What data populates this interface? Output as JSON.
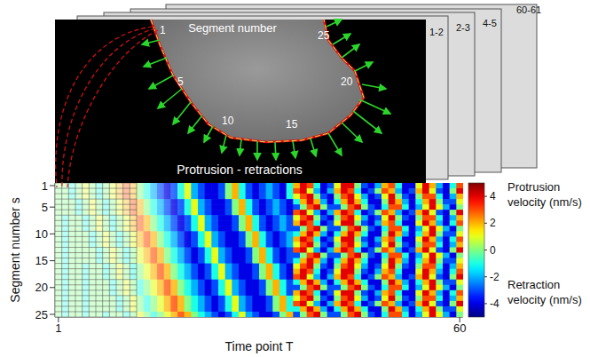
{
  "diagram": {
    "frame_labels": [
      "1-2",
      "2-3",
      "4-5",
      "60-61"
    ],
    "segment_title": "Segment number",
    "segment_labels": [
      "1",
      "5",
      "10",
      "15",
      "20",
      "25"
    ],
    "caption": "Protrusion - retractions"
  },
  "chart_data": {
    "type": "heatmap",
    "xlabel": "Time point T",
    "ylabel": "Segment number s",
    "xlim": [
      0.5,
      60.5
    ],
    "xticks": [
      1,
      60
    ],
    "ylim": [
      0.5,
      25.5
    ],
    "yticks": [
      1,
      5,
      10,
      15,
      20,
      25
    ],
    "colorbar": {
      "range": [
        -5,
        5
      ],
      "ticks": [
        -4,
        -2,
        0,
        2,
        4
      ],
      "top_label": "Protrusion velocity (nm/s)",
      "bottom_label": "Retraction velocity (nm/s)"
    },
    "cells": [
      [
        0,
        0,
        -1,
        0,
        1,
        0,
        -1,
        0,
        1,
        2,
        3,
        2,
        0,
        -1,
        -2,
        -3,
        -4,
        -3,
        -1,
        1,
        -2,
        -3,
        -4,
        -4,
        -3,
        0,
        2,
        -1,
        -3,
        -4,
        -3,
        -2,
        -3,
        -4,
        -1,
        2,
        4,
        3,
        -1,
        -4,
        -3,
        1,
        4,
        4,
        0,
        -3,
        -4,
        -2,
        2,
        3,
        -1,
        -4,
        -4,
        1,
        4,
        2,
        -2,
        -4,
        -1,
        3
      ],
      [
        0,
        0,
        -1,
        0,
        1,
        0,
        -1,
        0,
        1,
        2,
        3,
        2,
        0,
        -1,
        -2,
        -3,
        -4,
        -3,
        -1,
        1,
        -2,
        -3,
        -4,
        -4,
        -3,
        0,
        2,
        -1,
        -3,
        -4,
        -3,
        -2,
        -3,
        -4,
        -1,
        3,
        4,
        1,
        -2,
        -4,
        -2,
        2,
        4,
        3,
        -1,
        -4,
        -3,
        0,
        3,
        2,
        -2,
        -4,
        -3,
        2,
        4,
        1,
        -3,
        -4,
        0,
        4
      ],
      [
        0,
        0,
        -1,
        0,
        1,
        0,
        -1,
        0,
        1,
        2,
        3,
        2,
        0,
        -1,
        -2,
        -3,
        -4,
        -3,
        -1,
        1,
        -2,
        -3,
        -4,
        -4,
        -3,
        0,
        2,
        -1,
        -3,
        -4,
        -3,
        -2,
        -3,
        -4,
        -1,
        1,
        3,
        4,
        0,
        -3,
        -4,
        0,
        3,
        4,
        1,
        -2,
        -4,
        -3,
        1,
        4,
        0,
        -3,
        -4,
        0,
        3,
        3,
        -1,
        -4,
        -2,
        2
      ],
      [
        0,
        0,
        0,
        -1,
        0,
        1,
        0,
        -1,
        0,
        1,
        2,
        3,
        2,
        0,
        -1,
        -2,
        -3,
        -4,
        -3,
        -1,
        1,
        -2,
        -3,
        -4,
        -4,
        -3,
        0,
        2,
        -1,
        -3,
        -4,
        -3,
        -2,
        -3,
        -4,
        -1,
        2,
        4,
        2,
        -2,
        -4,
        -1,
        2,
        4,
        2,
        -1,
        -4,
        -4,
        0,
        4,
        2,
        -2,
        -4,
        -1,
        2,
        4,
        0,
        -3,
        -3,
        1
      ],
      [
        0,
        0,
        0,
        -1,
        0,
        1,
        0,
        -1,
        0,
        1,
        2,
        3,
        2,
        0,
        -1,
        -2,
        -3,
        -4,
        -3,
        -1,
        1,
        -2,
        -3,
        -4,
        -4,
        -3,
        0,
        2,
        -1,
        -3,
        -4,
        -3,
        -2,
        -3,
        -4,
        -3,
        0,
        3,
        4,
        0,
        -3,
        -3,
        0,
        3,
        4,
        0,
        -3,
        -4,
        -1,
        3,
        3,
        -1,
        -4,
        -2,
        1,
        4,
        1,
        -2,
        -4,
        0
      ],
      [
        0,
        0,
        0,
        -1,
        0,
        1,
        0,
        -1,
        0,
        1,
        2,
        3,
        2,
        0,
        -1,
        -2,
        -3,
        -4,
        -3,
        -1,
        1,
        -2,
        -3,
        -4,
        -4,
        -3,
        0,
        2,
        -1,
        -3,
        -4,
        -3,
        -2,
        -3,
        -4,
        3,
        4,
        1,
        -2,
        -4,
        -2,
        2,
        4,
        3,
        -1,
        -4,
        -3,
        0,
        3,
        2,
        -2,
        -4,
        -3,
        2,
        4,
        1,
        -3,
        -4,
        0,
        4
      ],
      [
        0,
        -1,
        0,
        0,
        -1,
        0,
        1,
        0,
        -1,
        0,
        1,
        2,
        3,
        2,
        0,
        -1,
        -2,
        -3,
        -4,
        -3,
        -1,
        1,
        -2,
        -3,
        -4,
        -4,
        -3,
        0,
        2,
        -1,
        -3,
        -4,
        -3,
        -2,
        -3,
        1,
        3,
        4,
        0,
        -3,
        -4,
        0,
        3,
        4,
        1,
        -2,
        -4,
        -3,
        1,
        4,
        0,
        -3,
        -4,
        0,
        3,
        3,
        -1,
        -4,
        -2,
        2
      ],
      [
        0,
        -1,
        0,
        0,
        -1,
        0,
        1,
        0,
        -1,
        0,
        1,
        2,
        3,
        2,
        0,
        -1,
        -2,
        -3,
        -4,
        -3,
        -1,
        1,
        -2,
        -3,
        -4,
        -4,
        -3,
        0,
        2,
        -1,
        -3,
        -4,
        -3,
        -2,
        -3,
        2,
        4,
        3,
        -1,
        -4,
        -3,
        1,
        4,
        4,
        0,
        -3,
        -4,
        -2,
        2,
        3,
        -1,
        -4,
        -4,
        1,
        4,
        2,
        -2,
        -4,
        -1,
        3
      ],
      [
        0,
        -1,
        0,
        0,
        -1,
        0,
        1,
        0,
        -1,
        0,
        1,
        2,
        3,
        2,
        0,
        -1,
        -2,
        -3,
        -4,
        -3,
        -1,
        1,
        -2,
        -3,
        -4,
        -4,
        -3,
        0,
        2,
        -1,
        -3,
        -4,
        -3,
        -2,
        -3,
        -3,
        0,
        3,
        4,
        0,
        -3,
        -3,
        0,
        3,
        4,
        0,
        -3,
        -4,
        -1,
        3,
        3,
        -1,
        -4,
        -2,
        1,
        4,
        1,
        -2,
        -4,
        0
      ],
      [
        0,
        -1,
        0,
        0,
        0,
        -1,
        0,
        1,
        0,
        -1,
        0,
        1,
        2,
        3,
        2,
        0,
        -1,
        -2,
        -3,
        -4,
        -3,
        -1,
        1,
        -2,
        -3,
        -4,
        -4,
        -3,
        0,
        2,
        -1,
        -3,
        -4,
        -3,
        -2,
        -1,
        2,
        4,
        2,
        -2,
        -4,
        -1,
        2,
        4,
        2,
        -1,
        -4,
        -4,
        0,
        4,
        2,
        -2,
        -4,
        -1,
        2,
        4,
        0,
        -3,
        -3,
        1
      ],
      [
        0,
        -1,
        0,
        0,
        0,
        -1,
        0,
        1,
        0,
        -1,
        0,
        1,
        2,
        3,
        2,
        0,
        -1,
        -2,
        -3,
        -4,
        -3,
        -1,
        1,
        -2,
        -3,
        -4,
        -4,
        -3,
        0,
        2,
        -1,
        -3,
        -4,
        -3,
        -2,
        2,
        4,
        3,
        -1,
        -4,
        -3,
        1,
        4,
        4,
        0,
        -3,
        -4,
        -2,
        2,
        3,
        -1,
        -4,
        -4,
        1,
        4,
        2,
        -2,
        -4,
        -1,
        3
      ],
      [
        0,
        -1,
        0,
        0,
        0,
        -1,
        0,
        1,
        0,
        -1,
        0,
        1,
        2,
        3,
        2,
        0,
        -1,
        -2,
        -3,
        -4,
        -3,
        -1,
        1,
        -2,
        -3,
        -4,
        -4,
        -3,
        0,
        2,
        -1,
        -3,
        -4,
        -3,
        -2,
        1,
        3,
        4,
        0,
        -3,
        -4,
        0,
        3,
        4,
        1,
        -2,
        -4,
        -3,
        1,
        4,
        0,
        -3,
        -4,
        0,
        3,
        3,
        -1,
        -4,
        -2,
        2
      ],
      [
        0,
        -1,
        0,
        0,
        0,
        0,
        -1,
        0,
        1,
        0,
        -1,
        0,
        1,
        2,
        3,
        2,
        0,
        -1,
        -2,
        -3,
        -4,
        -3,
        -1,
        1,
        -2,
        -3,
        -4,
        -4,
        -3,
        0,
        2,
        -1,
        -3,
        -4,
        -3,
        3,
        4,
        1,
        -2,
        -4,
        -2,
        2,
        4,
        3,
        -1,
        -4,
        -3,
        0,
        3,
        2,
        -2,
        -4,
        -3,
        2,
        4,
        1,
        -3,
        -4,
        0,
        4
      ],
      [
        0,
        -1,
        0,
        0,
        0,
        0,
        -1,
        0,
        1,
        0,
        -1,
        0,
        1,
        2,
        3,
        2,
        0,
        -1,
        -2,
        -3,
        -4,
        -3,
        -1,
        1,
        -2,
        -3,
        -4,
        -4,
        -3,
        0,
        2,
        -1,
        -3,
        -4,
        -3,
        -3,
        0,
        3,
        4,
        0,
        -3,
        -3,
        0,
        3,
        4,
        0,
        -3,
        -4,
        -1,
        3,
        3,
        -1,
        -4,
        -2,
        1,
        4,
        1,
        -2,
        -4,
        0
      ],
      [
        0,
        -1,
        0,
        0,
        0,
        0,
        -1,
        0,
        1,
        0,
        -1,
        0,
        1,
        2,
        3,
        2,
        0,
        -1,
        -2,
        -3,
        -4,
        -3,
        -1,
        1,
        -2,
        -3,
        -4,
        -4,
        -3,
        0,
        2,
        -1,
        -3,
        -4,
        -3,
        -1,
        2,
        4,
        2,
        -2,
        -4,
        -1,
        2,
        4,
        2,
        -1,
        -4,
        -4,
        0,
        4,
        2,
        -2,
        -4,
        -1,
        2,
        4,
        0,
        -3,
        -3,
        1
      ],
      [
        0,
        -1,
        0,
        0,
        -1,
        0,
        0,
        -1,
        0,
        1,
        0,
        -1,
        0,
        1,
        2,
        3,
        2,
        0,
        -1,
        -2,
        -3,
        -4,
        -3,
        -1,
        1,
        -2,
        -3,
        -4,
        -4,
        -3,
        0,
        2,
        -1,
        -3,
        -4,
        1,
        3,
        4,
        0,
        -3,
        -4,
        0,
        3,
        4,
        1,
        -2,
        -4,
        -3,
        1,
        4,
        0,
        -3,
        -4,
        0,
        3,
        3,
        -1,
        -4,
        -2,
        2
      ],
      [
        0,
        -1,
        0,
        0,
        -1,
        0,
        0,
        -1,
        0,
        1,
        0,
        -1,
        0,
        1,
        2,
        3,
        2,
        0,
        -1,
        -2,
        -3,
        -4,
        -3,
        -1,
        1,
        -2,
        -3,
        -4,
        -4,
        -3,
        0,
        2,
        -1,
        -3,
        -4,
        2,
        4,
        3,
        -1,
        -4,
        -3,
        1,
        4,
        4,
        0,
        -3,
        -4,
        -2,
        2,
        3,
        -1,
        -4,
        -4,
        1,
        4,
        2,
        -2,
        -4,
        -1,
        3
      ],
      [
        0,
        -1,
        0,
        0,
        -1,
        0,
        0,
        -1,
        0,
        1,
        0,
        -1,
        0,
        1,
        2,
        3,
        2,
        0,
        -1,
        -2,
        -3,
        -4,
        -3,
        -1,
        1,
        -2,
        -3,
        -4,
        -4,
        -3,
        0,
        2,
        -1,
        -3,
        -4,
        3,
        4,
        1,
        -2,
        -4,
        -2,
        2,
        4,
        3,
        -1,
        -4,
        -3,
        0,
        3,
        2,
        -2,
        -4,
        -3,
        2,
        4,
        1,
        -3,
        -4,
        0,
        4
      ],
      [
        0,
        -1,
        0,
        0,
        -1,
        0,
        0,
        0,
        -1,
        0,
        1,
        0,
        -1,
        0,
        1,
        2,
        3,
        2,
        0,
        -1,
        -2,
        -3,
        -4,
        -3,
        -1,
        1,
        -2,
        -3,
        -4,
        -4,
        -3,
        0,
        2,
        -1,
        -3,
        -1,
        2,
        4,
        2,
        -2,
        -4,
        -1,
        2,
        4,
        2,
        -1,
        -4,
        -4,
        0,
        4,
        2,
        -2,
        -4,
        -1,
        2,
        4,
        0,
        -3,
        -3,
        1
      ],
      [
        0,
        -1,
        0,
        0,
        -1,
        0,
        0,
        0,
        -1,
        0,
        1,
        0,
        -1,
        0,
        1,
        2,
        3,
        2,
        0,
        -1,
        -2,
        -3,
        -4,
        -3,
        -1,
        1,
        -2,
        -3,
        -4,
        -4,
        -3,
        0,
        2,
        -1,
        -3,
        -3,
        0,
        3,
        4,
        0,
        -3,
        -3,
        0,
        3,
        4,
        0,
        -3,
        -4,
        -1,
        3,
        3,
        -1,
        -4,
        -2,
        1,
        4,
        1,
        -2,
        -4,
        0
      ],
      [
        0,
        -1,
        0,
        0,
        -1,
        0,
        0,
        0,
        -1,
        0,
        1,
        0,
        -1,
        0,
        1,
        2,
        3,
        2,
        0,
        -1,
        -2,
        -3,
        -4,
        -3,
        -1,
        1,
        -2,
        -3,
        -4,
        -4,
        -3,
        0,
        2,
        -1,
        -3,
        2,
        4,
        3,
        -1,
        -4,
        -3,
        1,
        4,
        4,
        0,
        -3,
        -4,
        -2,
        2,
        3,
        -1,
        -4,
        -4,
        1,
        4,
        2,
        -2,
        -4,
        -1,
        3
      ],
      [
        0,
        -1,
        0,
        0,
        -1,
        0,
        0,
        0,
        0,
        -1,
        0,
        1,
        0,
        -1,
        0,
        1,
        2,
        3,
        2,
        0,
        -1,
        -2,
        -3,
        -4,
        -3,
        -1,
        1,
        -2,
        -3,
        -4,
        -4,
        -3,
        0,
        2,
        -1,
        1,
        3,
        4,
        0,
        -3,
        -4,
        0,
        3,
        4,
        1,
        -2,
        -4,
        -3,
        1,
        4,
        0,
        -3,
        -4,
        0,
        3,
        3,
        -1,
        -4,
        -2,
        2
      ],
      [
        0,
        -1,
        0,
        0,
        -1,
        0,
        0,
        0,
        0,
        -1,
        0,
        1,
        0,
        -1,
        0,
        1,
        2,
        3,
        2,
        0,
        -1,
        -2,
        -3,
        -4,
        -3,
        -1,
        1,
        -2,
        -3,
        -4,
        -4,
        -3,
        0,
        2,
        -1,
        3,
        4,
        1,
        -2,
        -4,
        -2,
        2,
        4,
        3,
        -1,
        -4,
        -3,
        0,
        3,
        2,
        -2,
        -4,
        -3,
        2,
        4,
        1,
        -3,
        -4,
        0,
        4
      ],
      [
        0,
        -1,
        0,
        0,
        -1,
        0,
        0,
        0,
        0,
        -1,
        0,
        1,
        0,
        -1,
        0,
        1,
        2,
        3,
        2,
        0,
        -1,
        -2,
        -3,
        -4,
        -3,
        -1,
        1,
        -2,
        -3,
        -4,
        -4,
        -3,
        0,
        2,
        -1,
        -1,
        2,
        4,
        2,
        -2,
        -4,
        -1,
        2,
        4,
        2,
        -1,
        -4,
        -4,
        0,
        4,
        2,
        -2,
        -4,
        -1,
        2,
        4,
        0,
        -3,
        -3,
        1
      ],
      [
        0,
        -1,
        0,
        0,
        -1,
        0,
        0,
        -1,
        0,
        0,
        -1,
        0,
        1,
        0,
        -1,
        0,
        1,
        2,
        3,
        2,
        0,
        -1,
        -2,
        -3,
        -4,
        -3,
        -1,
        1,
        -2,
        -3,
        -4,
        -4,
        -3,
        0,
        2,
        -3,
        0,
        3,
        4,
        0,
        -3,
        -3,
        0,
        3,
        4,
        0,
        -3,
        -4,
        -1,
        3,
        3,
        -1,
        -4,
        -2,
        1,
        4,
        1,
        -2,
        -4,
        0
      ]
    ]
  }
}
